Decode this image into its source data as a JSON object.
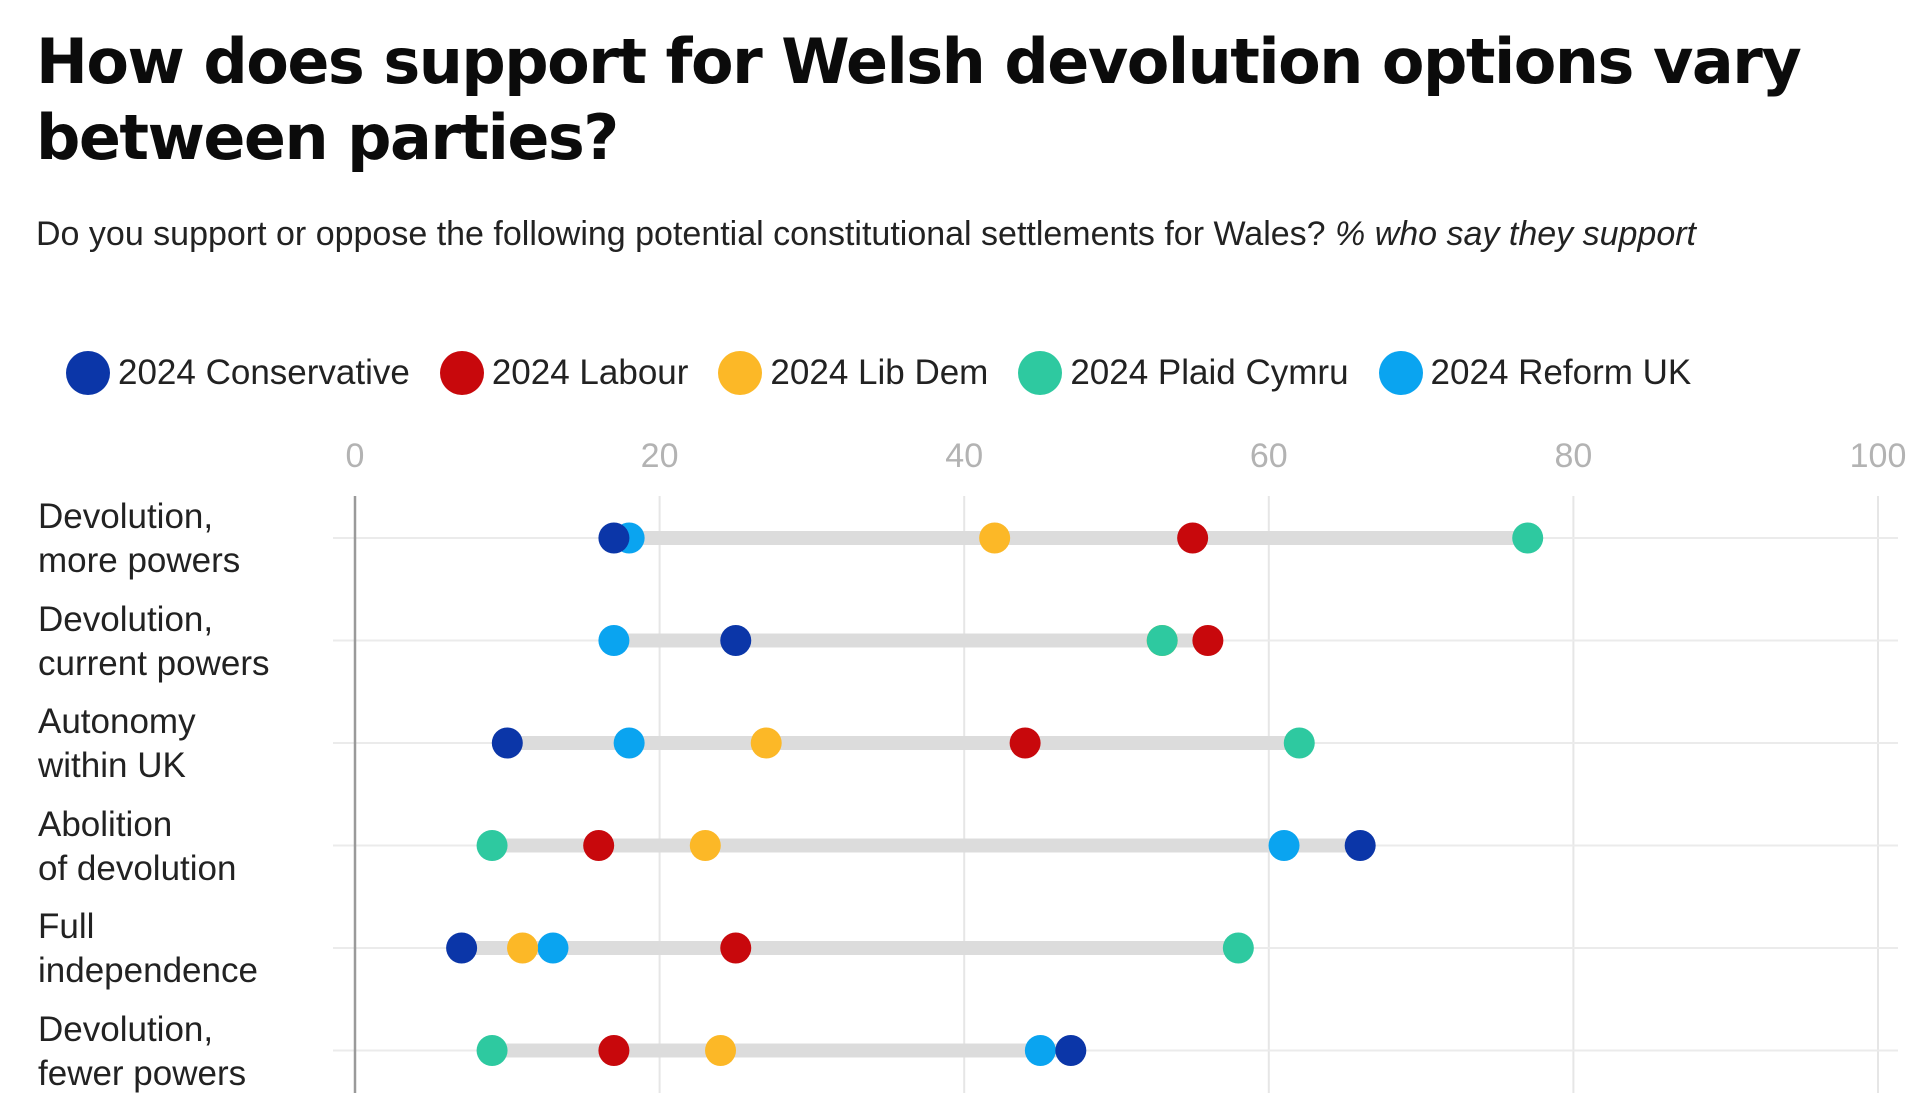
{
  "title": "How does support for Welsh devolution options vary between parties?",
  "subtitle": "Do you support or oppose the following potential constitutional settlements for Wales?",
  "subtitle_italic": "% who say they support",
  "chart_data": {
    "type": "scatter",
    "variant": "dot-plot",
    "title": "How does support for Welsh devolution options vary between parties?",
    "xlim": [
      0,
      100
    ],
    "xticks": [
      "0",
      "20",
      "40",
      "60",
      "80",
      "100"
    ],
    "xtick_values": [
      0,
      20,
      40,
      60,
      80,
      100
    ],
    "grid": true,
    "legend_position": "top",
    "categories": [
      {
        "line1": "Devolution,",
        "line2": "more powers"
      },
      {
        "line1": "Devolution,",
        "line2": "current powers"
      },
      {
        "line1": "Autonomy",
        "line2": "within UK"
      },
      {
        "line1": "Abolition",
        "line2": "of devolution"
      },
      {
        "line1": "Full",
        "line2": "independence"
      },
      {
        "line1": "Devolution,",
        "line2": "fewer powers"
      }
    ],
    "series": [
      {
        "name": "2024 Conservative",
        "color": "#0b36a8",
        "values": [
          17,
          25,
          10,
          66,
          7,
          47
        ]
      },
      {
        "name": "2024 Labour",
        "color": "#c8080c",
        "values": [
          55,
          56,
          44,
          16,
          25,
          17
        ]
      },
      {
        "name": "2024 Lib Dem",
        "color": "#fcb827",
        "values": [
          42,
          53,
          27,
          23,
          11,
          24
        ]
      },
      {
        "name": "2024 Plaid Cymru",
        "color": "#2ec9a0",
        "values": [
          77,
          53,
          62,
          9,
          58,
          9
        ]
      },
      {
        "name": "2024 Reform UK",
        "color": "#0aa4f0",
        "values": [
          18,
          17,
          18,
          61,
          13,
          45
        ]
      }
    ]
  }
}
